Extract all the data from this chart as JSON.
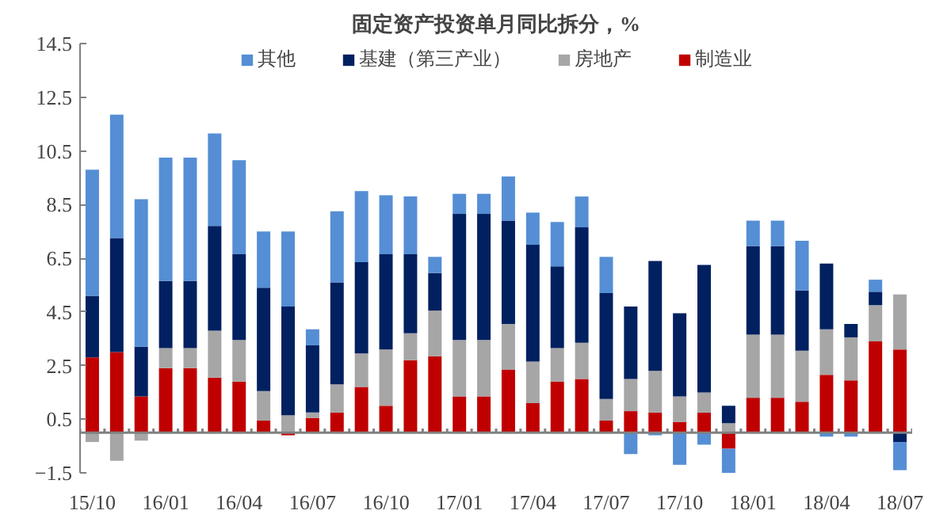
{
  "chart_data": {
    "type": "bar",
    "title": "固定资产投资单月同比拆分，%",
    "stacked": true,
    "categories": [
      "15/10",
      null,
      null,
      "16/01",
      null,
      null,
      "16/04",
      null,
      null,
      "16/07",
      null,
      null,
      "16/10",
      null,
      null,
      "17/01",
      null,
      null,
      "17/04",
      null,
      null,
      "17/07",
      null,
      null,
      "17/10",
      null,
      null,
      "18/01",
      null,
      null,
      "18/04",
      null,
      null,
      "18/07"
    ],
    "series": [
      {
        "name": "制造业",
        "color": "#c00000",
        "values": [
          2.8,
          3.0,
          1.35,
          2.4,
          2.4,
          2.05,
          1.9,
          0.45,
          -0.1,
          0.55,
          0.75,
          1.7,
          1.0,
          2.7,
          2.85,
          1.35,
          1.35,
          2.35,
          1.1,
          1.9,
          2.0,
          0.45,
          0.8,
          0.75,
          0.4,
          0.75,
          -0.6,
          1.3,
          1.3,
          1.15,
          2.15,
          1.95,
          3.4,
          3.1
        ]
      },
      {
        "name": "房地产",
        "color": "#a6a6a6",
        "values": [
          -0.35,
          -1.05,
          -0.3,
          0.75,
          0.75,
          1.75,
          1.55,
          1.1,
          0.65,
          0.2,
          1.05,
          1.25,
          2.1,
          1.0,
          1.7,
          2.1,
          2.1,
          1.7,
          1.55,
          1.25,
          1.35,
          0.8,
          1.2,
          1.55,
          0.95,
          0.75,
          0.35,
          2.35,
          2.35,
          1.9,
          1.7,
          1.6,
          1.35,
          2.05
        ]
      },
      {
        "name": "基建（第三产业）",
        "color": "#002060",
        "values": [
          2.3,
          4.25,
          1.85,
          2.5,
          2.5,
          3.9,
          3.2,
          3.85,
          4.05,
          2.5,
          3.8,
          3.4,
          3.55,
          2.95,
          1.4,
          4.7,
          4.7,
          3.85,
          4.35,
          3.05,
          4.3,
          3.95,
          2.7,
          4.1,
          3.1,
          4.75,
          0.65,
          3.3,
          3.3,
          2.25,
          2.45,
          0.5,
          0.5,
          -0.35
        ]
      },
      {
        "name": "其他",
        "color": "#558ed5",
        "values": [
          4.7,
          4.6,
          5.5,
          4.6,
          4.6,
          3.45,
          3.5,
          2.1,
          2.8,
          0.6,
          2.65,
          2.65,
          2.2,
          2.15,
          0.6,
          0.75,
          0.75,
          1.65,
          1.2,
          1.65,
          1.15,
          1.35,
          -0.8,
          -0.1,
          -1.2,
          -0.45,
          -0.95,
          0.95,
          0.95,
          1.85,
          -0.15,
          -0.15,
          0.45,
          -1.05
        ]
      }
    ],
    "ylim": [
      -1.5,
      14.5
    ],
    "yticks": [
      -1.5,
      0.5,
      2.5,
      4.5,
      6.5,
      8.5,
      10.5,
      12.5,
      14.5
    ],
    "legend": "top",
    "grid": false
  }
}
